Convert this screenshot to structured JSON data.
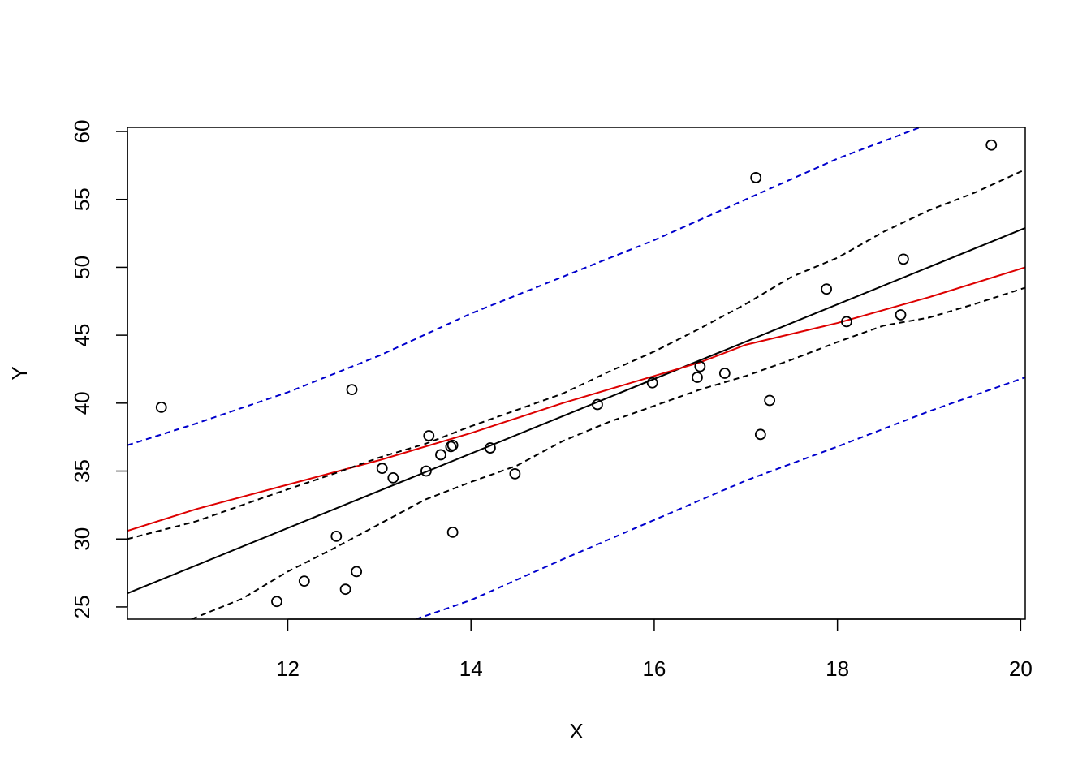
{
  "chart_data": {
    "type": "scatter",
    "title": "",
    "xlabel": "X",
    "ylabel": "Y",
    "xlim": [
      10.25,
      20.05
    ],
    "ylim": [
      24.1,
      60.3
    ],
    "grid": false,
    "x_ticks": [
      "12",
      "14",
      "16",
      "18",
      "20"
    ],
    "y_ticks": [
      "25",
      "30",
      "35",
      "40",
      "45",
      "50",
      "55",
      "60"
    ],
    "points": [
      {
        "x": 10.62,
        "y": 39.7
      },
      {
        "x": 11.88,
        "y": 25.4
      },
      {
        "x": 12.18,
        "y": 26.9
      },
      {
        "x": 12.53,
        "y": 30.2
      },
      {
        "x": 12.63,
        "y": 26.3
      },
      {
        "x": 12.7,
        "y": 41.0
      },
      {
        "x": 12.75,
        "y": 27.6
      },
      {
        "x": 13.03,
        "y": 35.2
      },
      {
        "x": 13.15,
        "y": 34.5
      },
      {
        "x": 13.51,
        "y": 35.0
      },
      {
        "x": 13.54,
        "y": 37.6
      },
      {
        "x": 13.67,
        "y": 36.2
      },
      {
        "x": 13.78,
        "y": 36.8
      },
      {
        "x": 13.8,
        "y": 36.9
      },
      {
        "x": 13.8,
        "y": 30.5
      },
      {
        "x": 14.21,
        "y": 36.7
      },
      {
        "x": 14.48,
        "y": 34.8
      },
      {
        "x": 15.38,
        "y": 39.9
      },
      {
        "x": 15.98,
        "y": 41.5
      },
      {
        "x": 16.47,
        "y": 41.9
      },
      {
        "x": 16.5,
        "y": 42.7
      },
      {
        "x": 16.77,
        "y": 42.2
      },
      {
        "x": 17.11,
        "y": 56.6
      },
      {
        "x": 17.16,
        "y": 37.7
      },
      {
        "x": 17.26,
        "y": 40.2
      },
      {
        "x": 17.88,
        "y": 48.4
      },
      {
        "x": 18.1,
        "y": 46.0
      },
      {
        "x": 18.69,
        "y": 46.5
      },
      {
        "x": 18.72,
        "y": 50.6
      },
      {
        "x": 19.68,
        "y": 59.0
      }
    ],
    "lines": [
      {
        "color": "#000000",
        "style": "solid",
        "x": [
          10.25,
          20.05
        ],
        "y": [
          26.0,
          52.9
        ]
      },
      {
        "color": "#dd0000",
        "style": "solid",
        "x": [
          10.25,
          11.0,
          12.0,
          13.0,
          14.0,
          15.0,
          16.0,
          16.5,
          17.0,
          18.0,
          19.0,
          20.05
        ],
        "y": [
          30.6,
          32.2,
          34.0,
          35.8,
          37.8,
          40.0,
          42.0,
          43.0,
          44.3,
          45.9,
          47.8,
          50.0
        ]
      },
      {
        "color": "#000000",
        "style": "dashed",
        "x": [
          10.25,
          11.0,
          11.8,
          12.5,
          13.0,
          13.5,
          14.0,
          14.5,
          15.0,
          15.5,
          16.0,
          16.5,
          17.0,
          17.5,
          18.0,
          18.5,
          19.0,
          19.5,
          20.05
        ],
        "y": [
          30.0,
          31.3,
          33.2,
          34.8,
          36.0,
          37.0,
          38.3,
          39.5,
          40.7,
          42.3,
          43.8,
          45.5,
          47.3,
          49.3,
          50.7,
          52.6,
          54.2,
          55.5,
          57.2
        ]
      },
      {
        "color": "#000000",
        "style": "dashed",
        "x": [
          10.95,
          11.5,
          12.0,
          12.5,
          13.0,
          13.5,
          14.0,
          14.5,
          15.0,
          15.5,
          16.0,
          16.5,
          17.0,
          17.5,
          18.0,
          18.5,
          19.0,
          19.5,
          20.05
        ],
        "y": [
          24.1,
          25.6,
          27.6,
          29.3,
          31.1,
          32.9,
          34.2,
          35.4,
          37.2,
          38.6,
          39.8,
          41.0,
          42.0,
          43.2,
          44.5,
          45.7,
          46.3,
          47.3,
          48.5
        ]
      },
      {
        "color": "#0000cc",
        "style": "dashed",
        "x": [
          10.25,
          11.0,
          12.0,
          13.0,
          14.0,
          15.0,
          16.0,
          17.0,
          18.0,
          18.9
        ],
        "y": [
          36.9,
          38.5,
          40.8,
          43.5,
          46.6,
          49.3,
          52.0,
          55.0,
          58.0,
          60.3
        ]
      },
      {
        "color": "#0000cc",
        "style": "dashed",
        "x": [
          13.4,
          14.0,
          15.0,
          16.0,
          17.0,
          18.0,
          19.0,
          20.05
        ],
        "y": [
          24.1,
          25.5,
          28.5,
          31.4,
          34.3,
          36.8,
          39.4,
          41.9
        ]
      }
    ]
  }
}
